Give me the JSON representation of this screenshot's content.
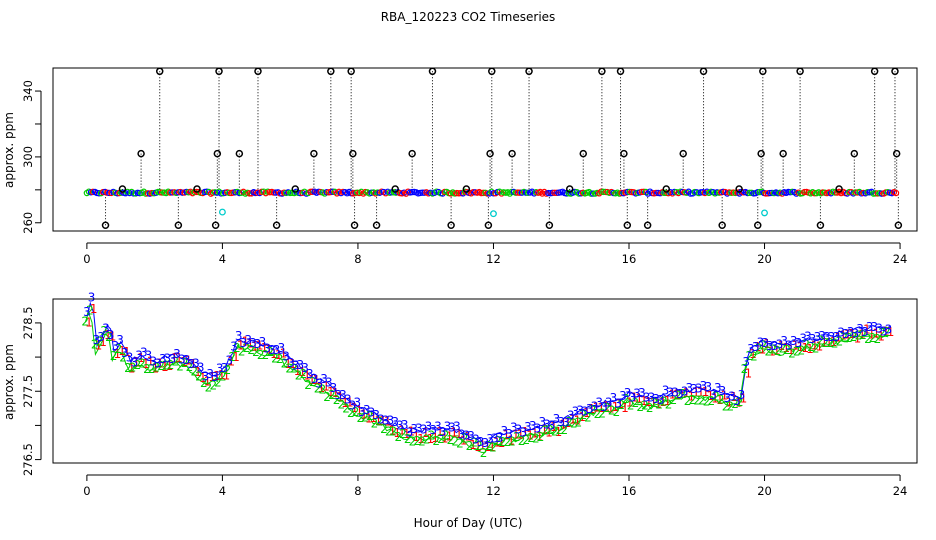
{
  "chart_data": [
    {
      "type": "scatter",
      "title": "RBA_120223  CO2 Timeseries",
      "xlabel": "",
      "ylabel": "approx. ppm",
      "xlim": [
        -1,
        24.5
      ],
      "ylim": [
        255,
        354
      ],
      "xticks": [
        0,
        4,
        8,
        12,
        16,
        20,
        24
      ],
      "yticks": [
        260,
        300,
        340
      ],
      "yticks_minor": [
        280,
        320
      ],
      "baseline": 278.3,
      "outliers_high": [
        [
          2.15,
          352
        ],
        [
          3.9,
          352
        ],
        [
          5.05,
          352
        ],
        [
          7.2,
          352
        ],
        [
          7.8,
          352
        ],
        [
          10.2,
          352
        ],
        [
          11.95,
          352
        ],
        [
          13.05,
          352
        ],
        [
          15.2,
          352
        ],
        [
          15.75,
          352
        ],
        [
          18.2,
          352
        ],
        [
          19.95,
          352
        ],
        [
          21.05,
          352
        ],
        [
          23.25,
          352
        ],
        [
          23.85,
          352
        ],
        [
          1.6,
          302
        ],
        [
          3.85,
          302
        ],
        [
          4.5,
          302
        ],
        [
          6.7,
          302
        ],
        [
          7.85,
          302
        ],
        [
          9.6,
          302
        ],
        [
          11.9,
          302
        ],
        [
          12.55,
          302
        ],
        [
          14.65,
          302
        ],
        [
          15.85,
          302
        ],
        [
          17.6,
          302
        ],
        [
          19.9,
          302
        ],
        [
          20.55,
          302
        ],
        [
          22.65,
          302
        ],
        [
          23.9,
          302
        ],
        [
          1.05,
          280.5
        ],
        [
          3.25,
          280.5
        ],
        [
          6.15,
          280.5
        ],
        [
          9.1,
          280.5
        ],
        [
          11.2,
          280.5
        ],
        [
          14.25,
          280.5
        ],
        [
          17.1,
          280.5
        ],
        [
          19.25,
          280.5
        ],
        [
          22.2,
          280.5
        ]
      ],
      "outliers_low": [
        [
          0.55,
          258.5
        ],
        [
          2.7,
          258.5
        ],
        [
          3.8,
          258.5
        ],
        [
          5.6,
          258.5
        ],
        [
          7.9,
          258.5
        ],
        [
          8.55,
          258.5
        ],
        [
          10.75,
          258.5
        ],
        [
          11.85,
          258.5
        ],
        [
          13.65,
          258.5
        ],
        [
          15.95,
          258.5
        ],
        [
          16.55,
          258.5
        ],
        [
          18.75,
          258.5
        ],
        [
          19.8,
          258.5
        ],
        [
          21.65,
          258.5
        ],
        [
          23.95,
          258.5
        ]
      ],
      "cyan_points": [
        [
          4.0,
          266.5
        ],
        [
          12.0,
          265.5
        ],
        [
          20.0,
          266
        ]
      ],
      "series": [
        {
          "name": "1",
          "color": "#ff0000"
        },
        {
          "name": "2",
          "color": "#00cc00"
        },
        {
          "name": "3",
          "color": "#0000ff"
        }
      ]
    },
    {
      "type": "line",
      "title": "",
      "xlabel": "Hour of Day (UTC)",
      "ylabel": "approx. ppm",
      "xlim": [
        -1,
        24.5
      ],
      "ylim": [
        276.45,
        278.85
      ],
      "xticks": [
        0,
        4,
        8,
        12,
        16,
        20,
        24
      ],
      "yticks": [
        276.5,
        277.5,
        278.5
      ],
      "yticks_minor": [
        277.0,
        278.0
      ],
      "series": [
        {
          "name": "1",
          "color": "#ff0000"
        },
        {
          "name": "2",
          "color": "#00cc00"
        },
        {
          "name": "3",
          "color": "#0000ff"
        }
      ],
      "profile": [
        [
          0.0,
          278.55
        ],
        [
          0.15,
          278.75
        ],
        [
          0.3,
          278.1
        ],
        [
          0.5,
          278.3
        ],
        [
          0.65,
          278.45
        ],
        [
          0.8,
          278.0
        ],
        [
          1.0,
          278.15
        ],
        [
          1.3,
          277.85
        ],
        [
          1.6,
          277.95
        ],
        [
          2.0,
          277.85
        ],
        [
          2.5,
          277.95
        ],
        [
          3.0,
          277.9
        ],
        [
          3.3,
          277.75
        ],
        [
          3.6,
          277.65
        ],
        [
          3.9,
          277.7
        ],
        [
          4.1,
          277.8
        ],
        [
          4.3,
          277.95
        ],
        [
          4.45,
          278.2
        ],
        [
          4.7,
          278.15
        ],
        [
          5.2,
          278.1
        ],
        [
          5.6,
          278.05
        ],
        [
          6.0,
          277.9
        ],
        [
          6.4,
          277.75
        ],
        [
          7.0,
          277.55
        ],
        [
          7.5,
          277.4
        ],
        [
          8.0,
          277.2
        ],
        [
          8.5,
          277.1
        ],
        [
          9.0,
          276.95
        ],
        [
          9.5,
          276.85
        ],
        [
          10.0,
          276.85
        ],
        [
          10.5,
          276.85
        ],
        [
          11.0,
          276.85
        ],
        [
          11.4,
          276.75
        ],
        [
          11.8,
          276.65
        ],
        [
          12.0,
          276.75
        ],
        [
          12.3,
          276.8
        ],
        [
          12.8,
          276.85
        ],
        [
          13.3,
          276.9
        ],
        [
          13.8,
          276.95
        ],
        [
          14.3,
          277.05
        ],
        [
          14.8,
          277.2
        ],
        [
          15.3,
          277.25
        ],
        [
          15.8,
          277.3
        ],
        [
          16.0,
          277.4
        ],
        [
          16.3,
          277.35
        ],
        [
          16.7,
          277.3
        ],
        [
          17.2,
          277.4
        ],
        [
          17.7,
          277.45
        ],
        [
          18.2,
          277.45
        ],
        [
          18.7,
          277.4
        ],
        [
          19.1,
          277.35
        ],
        [
          19.3,
          277.3
        ],
        [
          19.5,
          277.95
        ],
        [
          19.7,
          278.1
        ],
        [
          20.0,
          278.15
        ],
        [
          20.5,
          278.1
        ],
        [
          21.0,
          278.15
        ],
        [
          21.5,
          278.2
        ],
        [
          22.0,
          278.25
        ],
        [
          22.5,
          278.3
        ],
        [
          23.0,
          278.35
        ],
        [
          23.5,
          278.35
        ],
        [
          23.8,
          278.35
        ]
      ]
    }
  ]
}
